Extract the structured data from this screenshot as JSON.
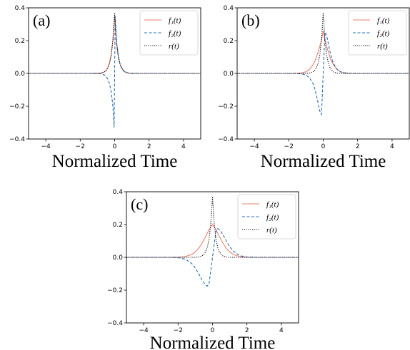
{
  "chart_data": [
    {
      "type": "line",
      "panel_label": "(a)",
      "xlabel": "Normalized Time",
      "ylabel": "",
      "xlim": [
        -5,
        5
      ],
      "ylim": [
        -0.4,
        0.4
      ],
      "xticks": [
        -4,
        -2,
        0,
        2,
        4
      ],
      "yticks": [
        -0.4,
        -0.2,
        0.0,
        0.2,
        0.4
      ],
      "xtick_labels": [
        "−4",
        "−2",
        "0",
        "2",
        "4"
      ],
      "ytick_labels": [
        "−0.4",
        "−0.2",
        "0.0",
        "0.2",
        "0.4"
      ],
      "grid": false,
      "legend_position": "top-right",
      "series": [
        {
          "name": "f₁(t)",
          "color": "#e8806f",
          "dash": "solid",
          "x": [
            -5,
            -1.5,
            -1.0,
            -0.8,
            -0.6,
            -0.5,
            -0.4,
            -0.3,
            -0.2,
            -0.1,
            0.0,
            0.1,
            0.2,
            0.3,
            0.4,
            0.5,
            0.6,
            0.8,
            1.0,
            1.5,
            5
          ],
          "y": [
            0,
            0,
            0.0004,
            0.002,
            0.009,
            0.018,
            0.034,
            0.062,
            0.112,
            0.2,
            0.35,
            0.2,
            0.112,
            0.062,
            0.034,
            0.018,
            0.009,
            0.002,
            0.0004,
            0,
            0
          ]
        },
        {
          "name": "f₂(t)",
          "color": "#2a6db1",
          "dash": "dashed",
          "x": [
            -5,
            -1.5,
            -1.0,
            -0.8,
            -0.6,
            -0.5,
            -0.4,
            -0.3,
            -0.2,
            -0.1,
            -0.03,
            0.0,
            0.03,
            0.1,
            0.2,
            0.3,
            0.4,
            0.5,
            0.6,
            0.8,
            1.0,
            1.5,
            5
          ],
          "y": [
            0,
            0,
            -0.0004,
            -0.002,
            -0.009,
            -0.018,
            -0.034,
            -0.062,
            -0.112,
            -0.2,
            -0.33,
            0.0,
            0.35,
            0.2,
            0.112,
            0.062,
            0.034,
            0.018,
            0.009,
            0.002,
            0.0004,
            0,
            0
          ]
        },
        {
          "name": "r(t)",
          "color": "#111111",
          "dash": "dotted",
          "x": [
            -5,
            -1.5,
            -1.0,
            -0.8,
            -0.6,
            -0.5,
            -0.4,
            -0.3,
            -0.2,
            -0.1,
            0.0,
            0.1,
            0.2,
            0.3,
            0.4,
            0.5,
            0.6,
            0.8,
            1.0,
            1.5,
            5
          ],
          "y": [
            0,
            0,
            0.0004,
            0.002,
            0.009,
            0.018,
            0.034,
            0.062,
            0.112,
            0.205,
            0.37,
            0.205,
            0.112,
            0.062,
            0.034,
            0.018,
            0.009,
            0.002,
            0.0004,
            0,
            0
          ]
        }
      ]
    },
    {
      "type": "line",
      "panel_label": "(b)",
      "xlabel": "Normalized Time",
      "ylabel": "",
      "xlim": [
        -5,
        5
      ],
      "ylim": [
        -0.4,
        0.4
      ],
      "xticks": [
        -4,
        -2,
        0,
        2,
        4
      ],
      "yticks": [
        -0.4,
        -0.2,
        0.0,
        0.2,
        0.4
      ],
      "xtick_labels": [
        "−4",
        "−2",
        "0",
        "2",
        "4"
      ],
      "ytick_labels": [
        "−0.4",
        "−0.2",
        "0.0",
        "0.2",
        "0.4"
      ],
      "grid": false,
      "legend_position": "top-right",
      "series": [
        {
          "name": "f₁(t)",
          "color": "#e8806f",
          "dash": "solid",
          "x": [
            -5,
            -2.0,
            -1.5,
            -1.2,
            -1.0,
            -0.8,
            -0.6,
            -0.5,
            -0.4,
            -0.3,
            -0.2,
            -0.1,
            0.0,
            0.1,
            0.2,
            0.3,
            0.4,
            0.5,
            0.6,
            0.8,
            1.0,
            1.2,
            1.5,
            2.0,
            5
          ],
          "y": [
            0,
            0,
            0.001,
            0.004,
            0.01,
            0.024,
            0.052,
            0.072,
            0.098,
            0.13,
            0.165,
            0.205,
            0.26,
            0.205,
            0.165,
            0.13,
            0.098,
            0.072,
            0.052,
            0.024,
            0.01,
            0.004,
            0.001,
            0,
            0
          ]
        },
        {
          "name": "f₂(t)",
          "color": "#2a6db1",
          "dash": "dashed",
          "x": [
            -5,
            -2.0,
            -1.5,
            -1.2,
            -1.0,
            -0.8,
            -0.6,
            -0.5,
            -0.4,
            -0.3,
            -0.2,
            -0.1,
            0.0,
            0.1,
            0.2,
            0.3,
            0.4,
            0.5,
            0.6,
            0.8,
            1.0,
            1.2,
            1.5,
            2.0,
            5
          ],
          "y": [
            0,
            0,
            -0.001,
            -0.004,
            -0.01,
            -0.026,
            -0.06,
            -0.09,
            -0.13,
            -0.18,
            -0.23,
            -0.25,
            0.0,
            0.25,
            0.23,
            0.18,
            0.13,
            0.09,
            0.06,
            0.026,
            0.01,
            0.004,
            0.001,
            0,
            0
          ]
        },
        {
          "name": "r(t)",
          "color": "#111111",
          "dash": "dotted",
          "x": [
            -5,
            -1.5,
            -1.0,
            -0.8,
            -0.6,
            -0.5,
            -0.4,
            -0.3,
            -0.2,
            -0.1,
            0.0,
            0.1,
            0.2,
            0.3,
            0.4,
            0.5,
            0.6,
            0.8,
            1.0,
            1.5,
            5
          ],
          "y": [
            0,
            0,
            0.0004,
            0.002,
            0.009,
            0.018,
            0.034,
            0.062,
            0.112,
            0.205,
            0.37,
            0.205,
            0.112,
            0.062,
            0.034,
            0.018,
            0.009,
            0.002,
            0.0004,
            0,
            0
          ]
        }
      ]
    },
    {
      "type": "line",
      "panel_label": "(c)",
      "xlabel": "Normalized Time",
      "ylabel": "",
      "xlim": [
        -5,
        5
      ],
      "ylim": [
        -0.4,
        0.4
      ],
      "xticks": [
        -4,
        -2,
        0,
        2,
        4
      ],
      "yticks": [
        -0.4,
        -0.2,
        0.0,
        0.2,
        0.4
      ],
      "xtick_labels": [
        "−4",
        "−2",
        "0",
        "2",
        "4"
      ],
      "ytick_labels": [
        "−0.4",
        "−0.2",
        "0.0",
        "0.2",
        "0.4"
      ],
      "grid": false,
      "legend_position": "top-right",
      "series": [
        {
          "name": "f₁(t)",
          "color": "#e8806f",
          "dash": "solid",
          "x": [
            -5,
            -2.5,
            -2.0,
            -1.6,
            -1.2,
            -1.0,
            -0.8,
            -0.6,
            -0.4,
            -0.2,
            0.0,
            0.2,
            0.4,
            0.6,
            0.8,
            1.0,
            1.2,
            1.6,
            2.0,
            2.5,
            5
          ],
          "y": [
            0,
            0,
            0.001,
            0.004,
            0.018,
            0.033,
            0.056,
            0.088,
            0.126,
            0.17,
            0.2,
            0.17,
            0.126,
            0.088,
            0.056,
            0.033,
            0.018,
            0.004,
            0.001,
            0,
            0
          ]
        },
        {
          "name": "f₂(t)",
          "color": "#2a6db1",
          "dash": "dashed",
          "x": [
            -5,
            -2.5,
            -2.0,
            -1.6,
            -1.2,
            -1.0,
            -0.8,
            -0.6,
            -0.4,
            -0.3,
            -0.2,
            0.0,
            0.2,
            0.3,
            0.4,
            0.6,
            0.8,
            1.0,
            1.2,
            1.6,
            2.0,
            2.5,
            5
          ],
          "y": [
            0,
            0,
            -0.002,
            -0.01,
            -0.038,
            -0.065,
            -0.1,
            -0.14,
            -0.17,
            -0.175,
            -0.16,
            0.0,
            0.16,
            0.175,
            0.17,
            0.14,
            0.1,
            0.065,
            0.038,
            0.01,
            0.002,
            0,
            0
          ]
        },
        {
          "name": "r(t)",
          "color": "#111111",
          "dash": "dotted",
          "x": [
            -5,
            -1.5,
            -1.0,
            -0.8,
            -0.6,
            -0.5,
            -0.4,
            -0.3,
            -0.2,
            -0.1,
            0.0,
            0.1,
            0.2,
            0.3,
            0.4,
            0.5,
            0.6,
            0.8,
            1.0,
            1.5,
            5
          ],
          "y": [
            0,
            0,
            0.0004,
            0.002,
            0.009,
            0.018,
            0.034,
            0.062,
            0.112,
            0.205,
            0.37,
            0.205,
            0.112,
            0.062,
            0.034,
            0.018,
            0.009,
            0.002,
            0.0004,
            0,
            0
          ]
        }
      ]
    }
  ]
}
